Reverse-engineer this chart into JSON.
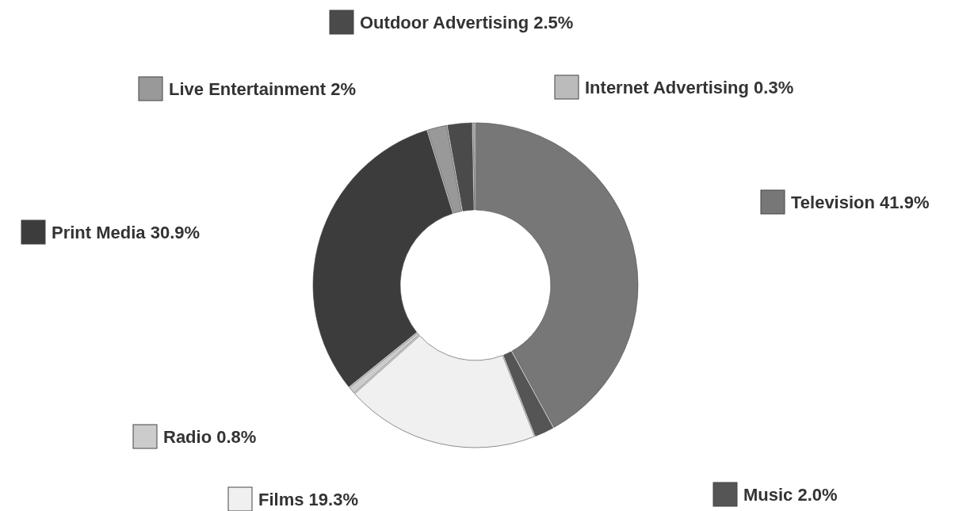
{
  "chart_data": {
    "type": "donut",
    "categories": [
      "Television",
      "Music",
      "Films",
      "Radio",
      "Print Media",
      "Live Entertainment",
      "Outdoor Advertising",
      "Internet Advertising"
    ],
    "values": [
      41.9,
      2.0,
      19.3,
      0.8,
      30.9,
      2,
      2.5,
      0.3
    ],
    "value_labels": [
      "41.9%",
      "2.0%",
      "19.3%",
      "0.8%",
      "30.9%",
      "2%",
      "2.5%",
      "0.3%"
    ],
    "colors": [
      "#777777",
      "#555555",
      "#f0f0f0",
      "#cccccc",
      "#3c3c3c",
      "#999999",
      "#4a4a4a",
      "#bbbbbb"
    ],
    "legend": "right"
  }
}
